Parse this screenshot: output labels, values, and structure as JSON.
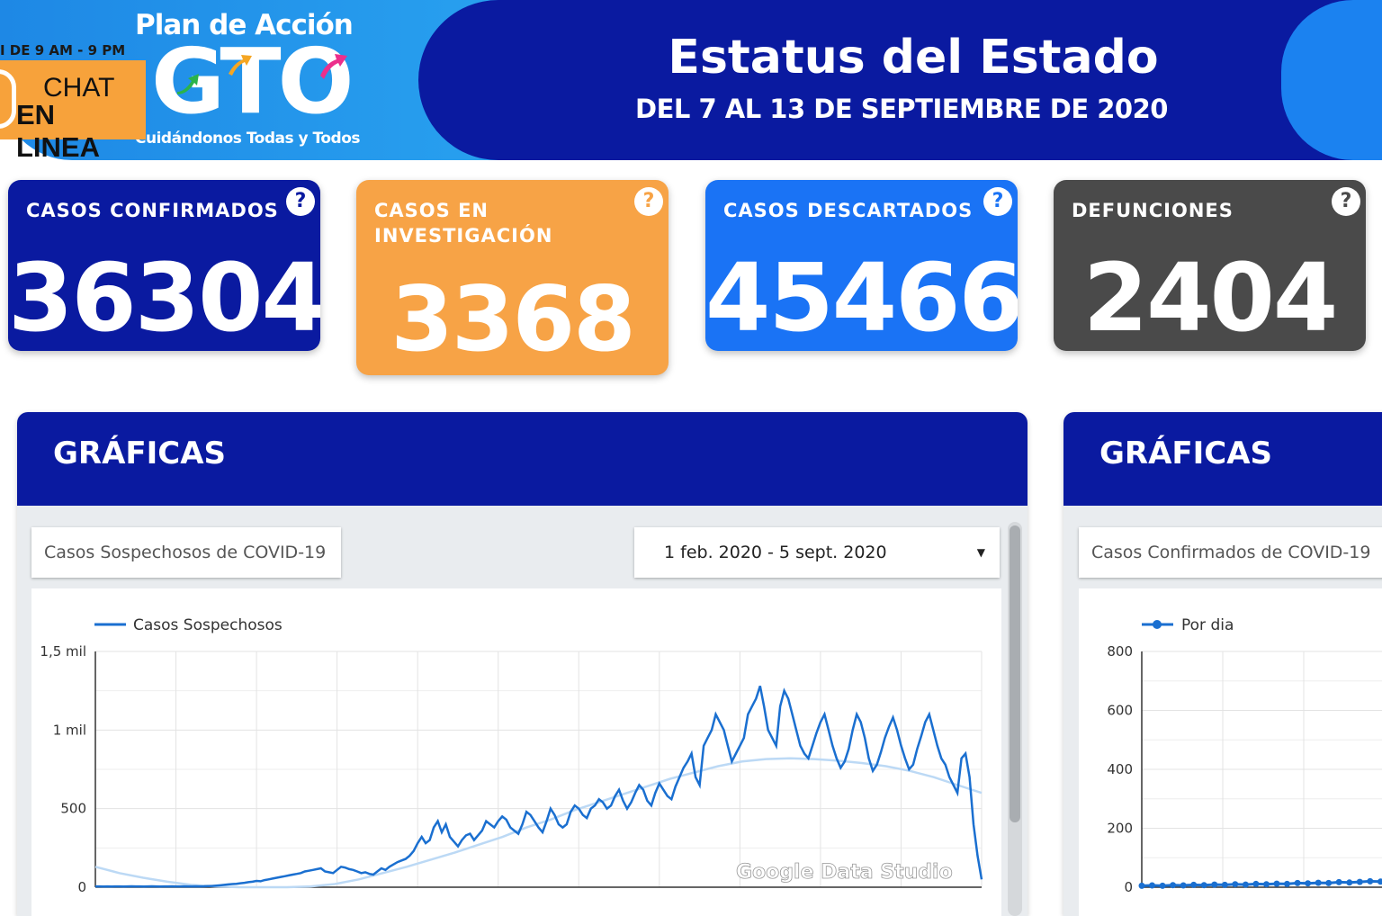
{
  "banner": {
    "logo_title": "Plan de Acción",
    "logo_main": "GTO",
    "logo_sub": "Cuidándonos Todas y Todos",
    "chat_hours": "I DE 9 AM - 9 PM",
    "chat_line1": "CHAT",
    "chat_line2": "EN LINEA",
    "status_title": "Estatus del Estado",
    "status_subtitle": "DEL 7 AL 13 DE SEPTIEMBRE DE 2020"
  },
  "cards": [
    {
      "label": "CASOS CONFIRMADOS",
      "value": "36304",
      "color": "#0a1aa0"
    },
    {
      "label": "CASOS EN INVESTIGACIÓN",
      "value": "3368",
      "color": "#f7a346"
    },
    {
      "label": "CASOS DESCARTADOS",
      "value": "45466",
      "color": "#1a73f5"
    },
    {
      "label": "DEFUNCIONES",
      "value": "2404",
      "color": "#4a4a4a"
    }
  ],
  "help_icon_glyph": "?",
  "panels": {
    "left": {
      "title": "GRÁFICAS",
      "chart_label": "Casos Sospechosos de COVID-19",
      "date_range": "1 feb. 2020 - 5 sept. 2020",
      "watermark": "Google Data Studio"
    },
    "right": {
      "title": "GRÁFICAS",
      "chart_label": "Casos Confirmados de COVID-19"
    }
  },
  "chart_data": [
    {
      "type": "line",
      "series": [
        {
          "name": "Casos Sospechosos",
          "values": [
            5,
            5,
            4,
            5,
            4,
            5,
            5,
            4,
            5,
            6,
            5,
            5,
            4,
            5,
            6,
            5,
            4,
            5,
            5,
            6,
            5,
            5,
            6,
            5,
            5,
            6,
            5,
            6,
            7,
            8,
            10,
            12,
            15,
            18,
            20,
            22,
            25,
            28,
            32,
            35,
            40,
            38,
            45,
            50,
            55,
            60,
            65,
            70,
            75,
            80,
            85,
            90,
            100,
            105,
            110,
            115,
            120,
            100,
            95,
            90,
            110,
            130,
            125,
            115,
            110,
            100,
            90,
            95,
            85,
            80,
            100,
            120,
            110,
            130,
            145,
            160,
            170,
            180,
            200,
            230,
            280,
            320,
            280,
            300,
            380,
            420,
            350,
            400,
            320,
            290,
            260,
            300,
            330,
            340,
            300,
            330,
            360,
            420,
            400,
            380,
            420,
            450,
            430,
            380,
            360,
            340,
            400,
            480,
            460,
            420,
            380,
            350,
            420,
            500,
            460,
            400,
            380,
            400,
            480,
            520,
            500,
            460,
            440,
            500,
            520,
            560,
            540,
            500,
            520,
            580,
            620,
            550,
            500,
            540,
            600,
            650,
            620,
            550,
            520,
            600,
            660,
            620,
            580,
            560,
            640,
            700,
            760,
            800,
            850,
            700,
            650,
            900,
            950,
            1000,
            1100,
            1050,
            1000,
            900,
            800,
            850,
            900,
            950,
            1100,
            1150,
            1200,
            1280,
            1150,
            1000,
            950,
            900,
            1150,
            1250,
            1200,
            1100,
            1000,
            900,
            850,
            820,
            900,
            980,
            1050,
            1100,
            1000,
            900,
            820,
            760,
            800,
            880,
            1000,
            1100,
            1050,
            950,
            820,
            740,
            780,
            860,
            950,
            1020,
            1080,
            1000,
            900,
            820,
            750,
            780,
            880,
            960,
            1050,
            1100,
            1000,
            900,
            820,
            780,
            700,
            650,
            600,
            820,
            850,
            700,
            400,
            200,
            50
          ]
        },
        {
          "name": "",
          "values": [
            130,
            90,
            60,
            35,
            15,
            5,
            0,
            0,
            0,
            5,
            20,
            50,
            90,
            130,
            175,
            220,
            270,
            320,
            380,
            430,
            490,
            540,
            590,
            640,
            690,
            730,
            770,
            800,
            815,
            820,
            815,
            805,
            790,
            770,
            740,
            700,
            650,
            600
          ]
        }
      ],
      "x_range": [
        "1 feb. 2020",
        "5 sept. 2020"
      ],
      "ylim": [
        0,
        1500
      ],
      "yticks": [
        "0",
        "500",
        "1 mil",
        "1,5 mil"
      ],
      "grid": true,
      "legend": "top-left"
    },
    {
      "type": "line",
      "series": [
        {
          "name": "Por dia",
          "values": [
            5,
            6,
            5,
            7,
            6,
            8,
            7,
            9,
            8,
            10,
            9,
            11,
            10,
            12,
            11,
            14,
            13,
            15,
            14,
            17,
            16,
            18,
            20,
            19,
            22,
            21,
            24,
            23,
            26,
            25,
            28,
            30,
            29,
            32,
            31,
            34,
            33,
            36,
            35,
            38
          ]
        }
      ],
      "ylim": [
        0,
        800
      ],
      "yticks": [
        "0",
        "200",
        "400",
        "600",
        "800"
      ],
      "grid": true,
      "legend": "top-left"
    }
  ]
}
